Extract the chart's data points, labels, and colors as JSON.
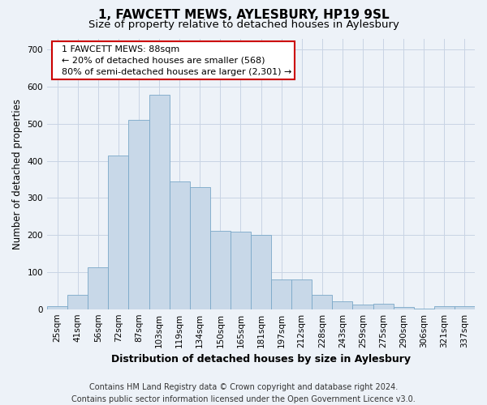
{
  "title": "1, FAWCETT MEWS, AYLESBURY, HP19 9SL",
  "subtitle": "Size of property relative to detached houses in Aylesbury",
  "xlabel": "Distribution of detached houses by size in Aylesbury",
  "ylabel": "Number of detached properties",
  "categories": [
    "25sqm",
    "41sqm",
    "56sqm",
    "72sqm",
    "87sqm",
    "103sqm",
    "119sqm",
    "134sqm",
    "150sqm",
    "165sqm",
    "181sqm",
    "197sqm",
    "212sqm",
    "228sqm",
    "243sqm",
    "259sqm",
    "275sqm",
    "290sqm",
    "306sqm",
    "321sqm",
    "337sqm"
  ],
  "values": [
    8,
    38,
    112,
    415,
    510,
    578,
    345,
    330,
    212,
    210,
    200,
    80,
    80,
    38,
    22,
    12,
    15,
    5,
    1,
    8,
    8
  ],
  "bar_color": "#c8d8e8",
  "bar_edge_color": "#7aa8c8",
  "highlight_bar_index": 4,
  "annotation_text": "  1 FAWCETT MEWS: 88sqm\n  ← 20% of detached houses are smaller (568)\n  80% of semi-detached houses are larger (2,301) →",
  "annotation_box_facecolor": "#ffffff",
  "annotation_box_edgecolor": "#cc0000",
  "footer_text": "Contains HM Land Registry data © Crown copyright and database right 2024.\nContains public sector information licensed under the Open Government Licence v3.0.",
  "ylim": [
    0,
    730
  ],
  "yticks": [
    0,
    100,
    200,
    300,
    400,
    500,
    600,
    700
  ],
  "grid_color": "#c8d4e4",
  "background_color": "#edf2f8",
  "title_fontsize": 11,
  "subtitle_fontsize": 9.5,
  "ylabel_fontsize": 8.5,
  "xlabel_fontsize": 9,
  "tick_fontsize": 7.5,
  "annotation_fontsize": 8,
  "footer_fontsize": 7
}
